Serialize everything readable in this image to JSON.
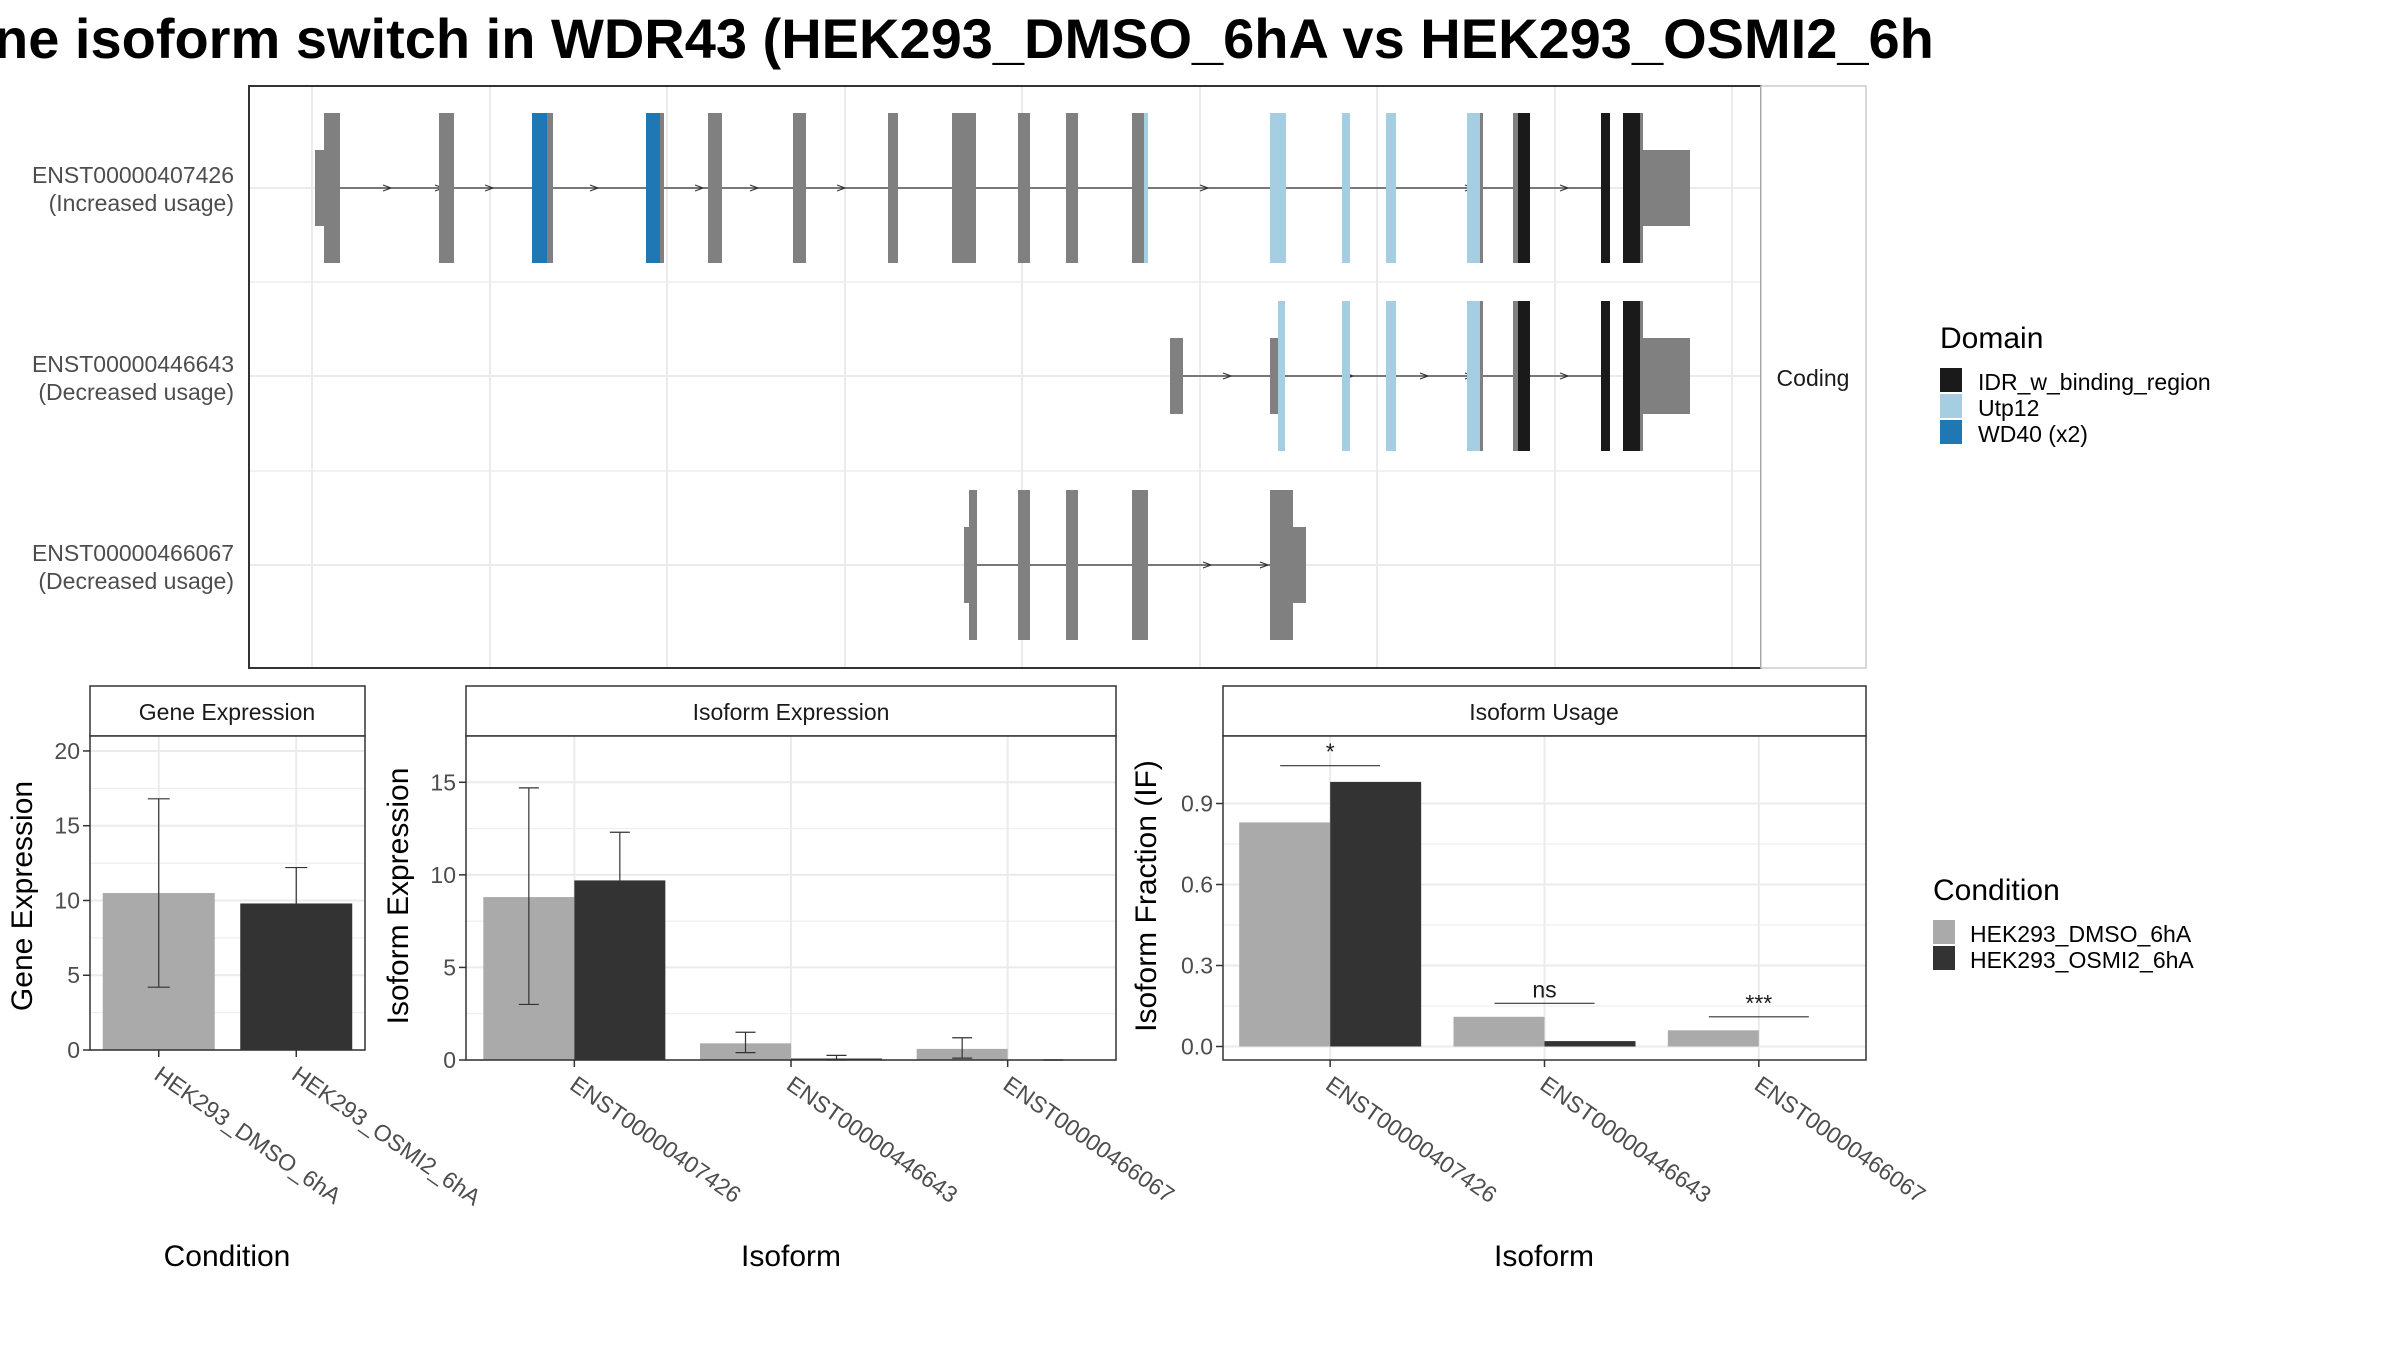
{
  "title": "ne isoform switch in WDR43 (HEK293_DMSO_6hA vs HEK293_OSMI2_6h",
  "colors": {
    "exon": "#808080",
    "IDR_w_binding_region": "#1a1a1a",
    "Utp12": "#a6cee3",
    "WD40": "#1f78b4",
    "dmso": "#aaaaaa",
    "osmi2": "#333333",
    "grid": "#ebebeb",
    "panel_border": "#333333",
    "strip_border": "#cccccc"
  },
  "structure": {
    "strip_label": "Coding",
    "isoforms": [
      {
        "id": "ENST00000407426",
        "usage": "(Increased usage)"
      },
      {
        "id": "ENST00000446643",
        "usage": "(Decreased usage)"
      },
      {
        "id": "ENST00000466067",
        "usage": "(Decreased usage)"
      }
    ],
    "domain_legend": {
      "title": "Domain",
      "items": [
        {
          "label": "IDR_w_binding_region",
          "color": "#1a1a1a"
        },
        {
          "label": "Utp12",
          "color": "#a6cee3"
        },
        {
          "label": "WD40 (x2)",
          "color": "#1f78b4"
        }
      ]
    }
  },
  "condition_legend": {
    "title": "Condition",
    "items": [
      {
        "label": "HEK293_DMSO_6hA",
        "color": "#aaaaaa"
      },
      {
        "label": "HEK293_OSMI2_6hA",
        "color": "#333333"
      }
    ]
  },
  "chart_data": [
    {
      "type": "bar",
      "title": "Gene Expression",
      "xlabel": "Condition",
      "ylabel": "Gene Expression",
      "ylim": [
        0,
        21
      ],
      "yticks": [
        0,
        5,
        10,
        15,
        20
      ],
      "categories": [
        "HEK293_DMSO_6hA",
        "HEK293_OSMI2_6hA"
      ],
      "values": [
        10.5,
        9.8
      ],
      "errors": [
        [
          4.2,
          16.8
        ],
        [
          7.4,
          12.2
        ]
      ],
      "colors": [
        "#aaaaaa",
        "#333333"
      ]
    },
    {
      "type": "bar",
      "title": "Isoform Expression",
      "xlabel": "Isoform",
      "ylabel": "Isoform Expression",
      "ylim": [
        0,
        17.5
      ],
      "yticks": [
        0,
        5,
        10,
        15
      ],
      "categories": [
        "ENST00000407426",
        "ENST00000446643",
        "ENST00000466067"
      ],
      "series": [
        {
          "name": "HEK293_DMSO_6hA",
          "values": [
            8.8,
            0.9,
            0.6
          ],
          "errors": [
            [
              3.0,
              14.7
            ],
            [
              0.4,
              1.5
            ],
            [
              0.1,
              1.2
            ]
          ]
        },
        {
          "name": "HEK293_OSMI2_6hA",
          "values": [
            9.7,
            0.08,
            0.0
          ],
          "errors": [
            [
              7.1,
              12.3
            ],
            [
              0.0,
              0.25
            ],
            [
              0.0,
              0.0
            ]
          ]
        }
      ]
    },
    {
      "type": "bar",
      "title": "Isoform Usage",
      "xlabel": "Isoform",
      "ylabel": "Isoform Fraction (IF)",
      "ylim": [
        -0.05,
        1.15
      ],
      "yticks": [
        0.0,
        0.3,
        0.6,
        0.9
      ],
      "ytick_labels": [
        "0.0",
        "0.3",
        "0.6",
        "0.9"
      ],
      "categories": [
        "ENST00000407426",
        "ENST00000446643",
        "ENST00000466067"
      ],
      "series": [
        {
          "name": "HEK293_DMSO_6hA",
          "values": [
            0.83,
            0.11,
            0.06
          ]
        },
        {
          "name": "HEK293_OSMI2_6hA",
          "values": [
            0.98,
            0.02,
            0.0
          ]
        }
      ],
      "significance": [
        "*",
        "ns",
        "***"
      ],
      "significance_levels": [
        1.04,
        0.16,
        0.11
      ]
    }
  ]
}
